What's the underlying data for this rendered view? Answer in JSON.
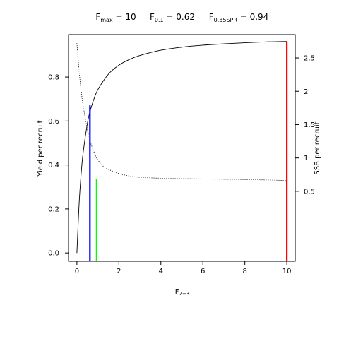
{
  "chart_data": {
    "type": "line",
    "title": {
      "fmax": {
        "base": "F",
        "sub": "max",
        "rest": " = 10"
      },
      "f01": {
        "base": "F",
        "sub": "0.1",
        "rest": " = 0.62"
      },
      "fspr": {
        "base": "F",
        "sub": "0.35SPR",
        "rest": " = 0.94"
      }
    },
    "xlabel": {
      "base": "F",
      "sub": "2−3"
    },
    "ylabel": "Yield per recruit",
    "y2label": "SSB per recruit",
    "xlim": [
      -0.4,
      10.4
    ],
    "ylim": [
      -0.038,
      0.993
    ],
    "y2lim": [
      -0.55,
      2.85
    ],
    "xticks": [
      "0",
      "2",
      "4",
      "6",
      "8",
      "10"
    ],
    "yticks": [
      "0.0",
      "0.2",
      "0.4",
      "0.6",
      "0.8"
    ],
    "y2ticks": [
      "0.5",
      "1",
      "1.5",
      "2",
      "2.5"
    ],
    "series": [
      {
        "axis": "left",
        "style": "solid",
        "x": [
          0,
          0.1,
          0.2,
          0.3,
          0.5,
          0.62,
          0.8,
          1,
          1.5,
          2,
          2.5,
          3,
          4,
          5,
          6,
          7,
          8,
          9,
          10
        ],
        "y": [
          0,
          0.215,
          0.358,
          0.459,
          0.59,
          0.641,
          0.697,
          0.743,
          0.813,
          0.854,
          0.88,
          0.898,
          0.922,
          0.936,
          0.945,
          0.951,
          0.956,
          0.96,
          0.962
        ]
      },
      {
        "axis": "right",
        "style": "dotted",
        "x": [
          0,
          0.1,
          0.2,
          0.3,
          0.5,
          0.62,
          0.8,
          0.94,
          1,
          1.2,
          1.5,
          2,
          2.5,
          3,
          4,
          5,
          6,
          7,
          8,
          9,
          10
        ],
        "y": [
          2.72,
          2.32,
          2.02,
          1.78,
          1.42,
          1.26,
          1.1,
          1.0,
          0.97,
          0.89,
          0.83,
          0.765,
          0.73,
          0.71,
          0.695,
          0.69,
          0.685,
          0.68,
          0.675,
          0.67,
          0.66
        ]
      }
    ],
    "reference_lines": [
      {
        "x": 0.62,
        "y": 0.671,
        "color": "#0000ff"
      },
      {
        "x": 0.94,
        "y": 0.336,
        "color": "#00ff00"
      },
      {
        "x": 10,
        "y": 0.962,
        "color": "#ff0000"
      }
    ]
  }
}
